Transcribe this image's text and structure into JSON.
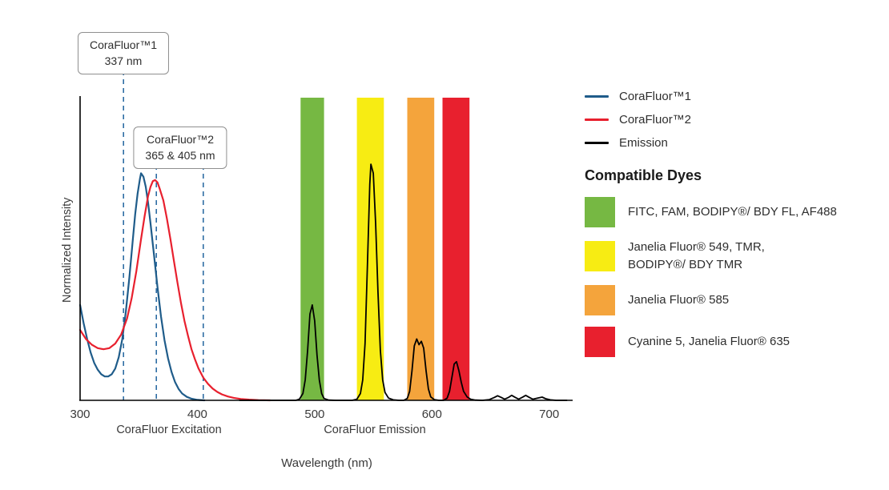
{
  "page": {
    "background": "#ffffff"
  },
  "legend": {
    "compatible_dyes_title": "Compatible Dyes"
  },
  "chart_data": {
    "type": "line",
    "title": "",
    "xlabel": "Wavelength (nm)",
    "ylabel": "Normalized Intensity",
    "x_axis_section_labels": {
      "excitation": "CoraFluor Excitation",
      "emission": "CoraFluor Emission"
    },
    "xlim": [
      300,
      720
    ],
    "ylim": [
      0,
      1.34
    ],
    "x_ticks": [
      300,
      400,
      500,
      600,
      700
    ],
    "grid": false,
    "legend_position": "right",
    "annotation_line_color": "#2e6da4",
    "annotations": [
      {
        "lines": [
          "CoraFluor™1",
          "337 nm"
        ],
        "x": [
          337
        ]
      },
      {
        "lines": [
          "CoraFluor™2",
          "365 & 405 nm"
        ],
        "x": [
          365,
          405
        ]
      }
    ],
    "bands": [
      {
        "name": "green",
        "color": "#76b843",
        "range": [
          488,
          508
        ],
        "dyes": "FITC, FAM, BODIPY®/ BDY FL, AF488"
      },
      {
        "name": "yellow",
        "color": "#f7ec13",
        "range": [
          536,
          559
        ],
        "dyes": "Janelia Fluor® 549, TMR,\nBODIPY®/ BDY TMR"
      },
      {
        "name": "orange",
        "color": "#f4a43c",
        "range": [
          579,
          602
        ],
        "dyes": "Janelia Fluor® 585"
      },
      {
        "name": "red",
        "color": "#e8202e",
        "range": [
          609,
          632
        ],
        "dyes": "Cyanine 5, Janelia Fluor® 635"
      }
    ],
    "series": [
      {
        "key": "corafluor1-excitation",
        "name": "CoraFluor™1",
        "color": "#1f5c8a",
        "points": [
          [
            300,
            0.42
          ],
          [
            303,
            0.34
          ],
          [
            306,
            0.27
          ],
          [
            309,
            0.21
          ],
          [
            312,
            0.165
          ],
          [
            315,
            0.135
          ],
          [
            318,
            0.115
          ],
          [
            321,
            0.105
          ],
          [
            324,
            0.105
          ],
          [
            327,
            0.115
          ],
          [
            330,
            0.14
          ],
          [
            333,
            0.19
          ],
          [
            336,
            0.27
          ],
          [
            339,
            0.39
          ],
          [
            342,
            0.54
          ],
          [
            345,
            0.71
          ],
          [
            347,
            0.82
          ],
          [
            349,
            0.91
          ],
          [
            351,
            0.975
          ],
          [
            352,
            1.0
          ],
          [
            354,
            0.985
          ],
          [
            356,
            0.94
          ],
          [
            358,
            0.87
          ],
          [
            360,
            0.78
          ],
          [
            363,
            0.64
          ],
          [
            366,
            0.5
          ],
          [
            369,
            0.37
          ],
          [
            372,
            0.265
          ],
          [
            375,
            0.185
          ],
          [
            378,
            0.125
          ],
          [
            381,
            0.08
          ],
          [
            384,
            0.05
          ],
          [
            387,
            0.03
          ],
          [
            391,
            0.015
          ],
          [
            395,
            0.007
          ],
          [
            400,
            0.002
          ],
          [
            406,
            0
          ]
        ]
      },
      {
        "key": "corafluor2-excitation",
        "name": "CoraFluor™2",
        "color": "#e8202e",
        "points": [
          [
            300,
            0.31
          ],
          [
            305,
            0.27
          ],
          [
            310,
            0.245
          ],
          [
            315,
            0.23
          ],
          [
            320,
            0.225
          ],
          [
            325,
            0.23
          ],
          [
            330,
            0.25
          ],
          [
            335,
            0.29
          ],
          [
            340,
            0.36
          ],
          [
            344,
            0.45
          ],
          [
            348,
            0.57
          ],
          [
            352,
            0.71
          ],
          [
            355,
            0.81
          ],
          [
            358,
            0.9
          ],
          [
            360,
            0.94
          ],
          [
            362,
            0.965
          ],
          [
            364,
            0.97
          ],
          [
            366,
            0.96
          ],
          [
            368,
            0.93
          ],
          [
            371,
            0.88
          ],
          [
            374,
            0.8
          ],
          [
            377,
            0.71
          ],
          [
            380,
            0.615
          ],
          [
            383,
            0.52
          ],
          [
            386,
            0.43
          ],
          [
            389,
            0.35
          ],
          [
            392,
            0.285
          ],
          [
            395,
            0.225
          ],
          [
            398,
            0.18
          ],
          [
            401,
            0.14
          ],
          [
            405,
            0.1
          ],
          [
            409,
            0.073
          ],
          [
            413,
            0.052
          ],
          [
            417,
            0.037
          ],
          [
            421,
            0.026
          ],
          [
            426,
            0.017
          ],
          [
            431,
            0.011
          ],
          [
            437,
            0.006
          ],
          [
            444,
            0.003
          ],
          [
            452,
            0.001
          ],
          [
            462,
            0
          ]
        ]
      },
      {
        "key": "emission",
        "name": "Emission",
        "color": "#000000",
        "points": [
          [
            436,
            0
          ],
          [
            484,
            0
          ],
          [
            487,
            0.005
          ],
          [
            490,
            0.03
          ],
          [
            492,
            0.09
          ],
          [
            494,
            0.22
          ],
          [
            496,
            0.38
          ],
          [
            498,
            0.42
          ],
          [
            500,
            0.35
          ],
          [
            502,
            0.2
          ],
          [
            504,
            0.09
          ],
          [
            506,
            0.03
          ],
          [
            508,
            0.008
          ],
          [
            512,
            0.001
          ],
          [
            518,
            0
          ],
          [
            532,
            0
          ],
          [
            536,
            0.005
          ],
          [
            539,
            0.03
          ],
          [
            541,
            0.09
          ],
          [
            543,
            0.25
          ],
          [
            545,
            0.6
          ],
          [
            547,
            0.95
          ],
          [
            548,
            1.04
          ],
          [
            550,
            1.0
          ],
          [
            552,
            0.78
          ],
          [
            554,
            0.48
          ],
          [
            556,
            0.22
          ],
          [
            558,
            0.09
          ],
          [
            560,
            0.035
          ],
          [
            563,
            0.01
          ],
          [
            567,
            0.002
          ],
          [
            572,
            0
          ],
          [
            576,
            0
          ],
          [
            579,
            0.008
          ],
          [
            581,
            0.04
          ],
          [
            583,
            0.13
          ],
          [
            585,
            0.24
          ],
          [
            587,
            0.27
          ],
          [
            589,
            0.245
          ],
          [
            591,
            0.26
          ],
          [
            593,
            0.23
          ],
          [
            595,
            0.13
          ],
          [
            597,
            0.05
          ],
          [
            599,
            0.015
          ],
          [
            602,
            0.003
          ],
          [
            606,
            0
          ],
          [
            610,
            0
          ],
          [
            613,
            0.01
          ],
          [
            615,
            0.04
          ],
          [
            617,
            0.1
          ],
          [
            619,
            0.16
          ],
          [
            621,
            0.17
          ],
          [
            623,
            0.13
          ],
          [
            625,
            0.08
          ],
          [
            627,
            0.04
          ],
          [
            630,
            0.015
          ],
          [
            633,
            0.005
          ],
          [
            637,
            0.001
          ],
          [
            643,
            0
          ],
          [
            649,
            0.003
          ],
          [
            653,
            0.012
          ],
          [
            656,
            0.02
          ],
          [
            659,
            0.013
          ],
          [
            662,
            0.005
          ],
          [
            665,
            0.012
          ],
          [
            668,
            0.022
          ],
          [
            671,
            0.013
          ],
          [
            674,
            0.005
          ],
          [
            677,
            0.013
          ],
          [
            680,
            0.022
          ],
          [
            683,
            0.013
          ],
          [
            686,
            0.005
          ],
          [
            690,
            0.01
          ],
          [
            694,
            0.014
          ],
          [
            697,
            0.007
          ],
          [
            701,
            0.002
          ],
          [
            706,
            0
          ],
          [
            715,
            0
          ]
        ]
      }
    ]
  }
}
